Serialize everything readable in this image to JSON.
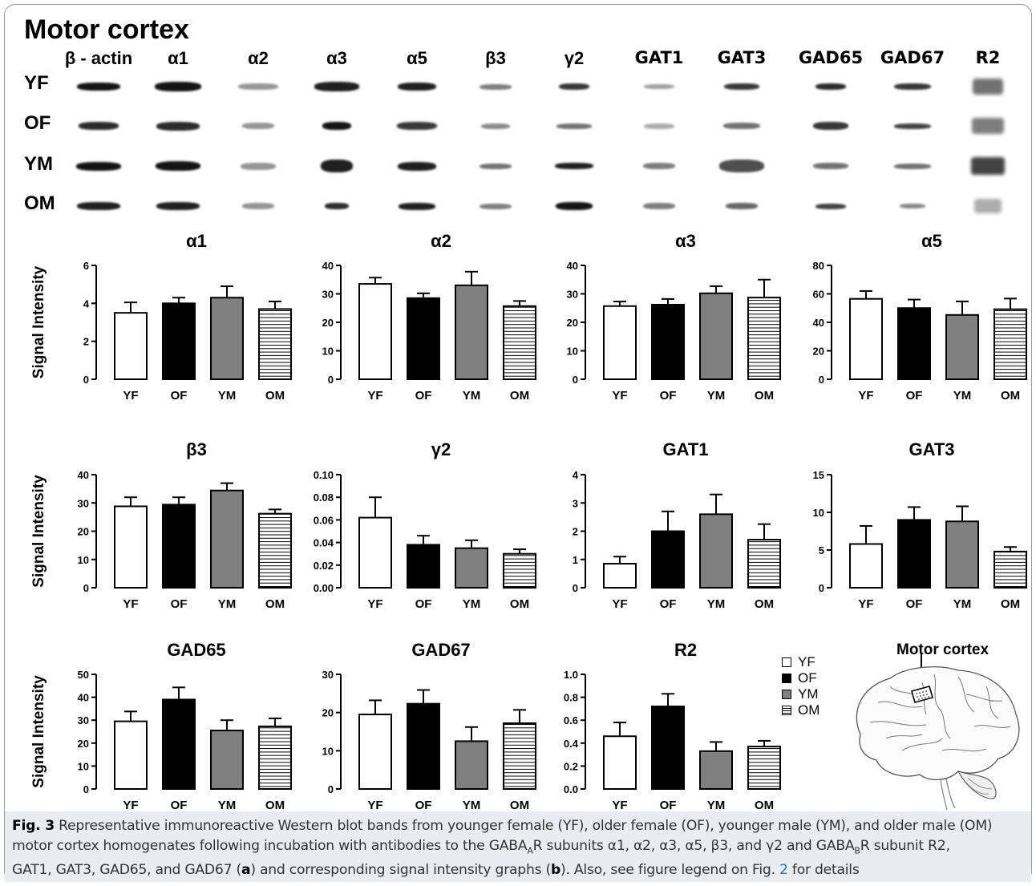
{
  "title": "Motor cortex",
  "blot": {
    "columns": [
      "β - actin",
      "α1",
      "α2",
      "α3",
      "α5",
      "β3",
      "γ2",
      "GAT1",
      "GAT3",
      "GAD65",
      "GAD67",
      "R2"
    ],
    "rows": [
      "YF",
      "OF",
      "YM",
      "OM"
    ]
  },
  "colors": {
    "YF": "#ffffff",
    "OF": "#000000",
    "YM": "#808080",
    "OM": "hatch"
  },
  "chart_data": [
    {
      "type": "bar",
      "title": "α1",
      "ylabel": "Signal Intensity",
      "categories": [
        "YF",
        "OF",
        "YM",
        "OM"
      ],
      "values": [
        3.5,
        4.0,
        4.3,
        3.7
      ],
      "errors": [
        0.55,
        0.3,
        0.6,
        0.4
      ],
      "ylim": [
        0,
        6
      ],
      "yticks": [
        "0",
        "2",
        "4",
        "6"
      ]
    },
    {
      "type": "bar",
      "title": "α2",
      "ylabel": "",
      "categories": [
        "YF",
        "OF",
        "YM",
        "OM"
      ],
      "values": [
        33.5,
        28.5,
        33,
        25.7
      ],
      "errors": [
        2.2,
        1.7,
        4.8,
        1.8
      ],
      "ylim": [
        0,
        40
      ],
      "yticks": [
        "0",
        "10",
        "20",
        "30",
        "40"
      ]
    },
    {
      "type": "bar",
      "title": "α3",
      "ylabel": "",
      "categories": [
        "YF",
        "OF",
        "YM",
        "OM"
      ],
      "values": [
        25.7,
        26.2,
        30.2,
        28.7
      ],
      "errors": [
        1.6,
        2.0,
        2.5,
        6.3
      ],
      "ylim": [
        0,
        40
      ],
      "yticks": [
        "0",
        "10",
        "20",
        "30",
        "40"
      ]
    },
    {
      "type": "bar",
      "title": "α5",
      "ylabel": "",
      "categories": [
        "YF",
        "OF",
        "YM",
        "OM"
      ],
      "values": [
        56.5,
        50,
        45.2,
        49.2
      ],
      "errors": [
        5.5,
        6,
        9.5,
        7.5
      ],
      "ylim": [
        0,
        80
      ],
      "yticks": [
        "0",
        "20",
        "40",
        "60",
        "80"
      ]
    },
    {
      "type": "bar",
      "title": "β3",
      "ylabel": "Signal Intensity",
      "categories": [
        "YF",
        "OF",
        "YM",
        "OM"
      ],
      "values": [
        28.8,
        29.4,
        34.4,
        26.2
      ],
      "errors": [
        3.2,
        2.6,
        2.6,
        1.5
      ],
      "ylim": [
        0,
        40
      ],
      "yticks": [
        "0",
        "10",
        "20",
        "30",
        "40"
      ]
    },
    {
      "type": "bar",
      "title": "γ2",
      "ylabel": "",
      "categories": [
        "YF",
        "OF",
        "YM",
        "OM"
      ],
      "values": [
        0.062,
        0.038,
        0.035,
        0.03
      ],
      "errors": [
        0.018,
        0.008,
        0.007,
        0.004
      ],
      "ylim": [
        0,
        0.1
      ],
      "yticks": [
        "0.00",
        "0.02",
        "0.04",
        "0.06",
        "0.08",
        "0.10"
      ]
    },
    {
      "type": "bar",
      "title": "GAT1",
      "ylabel": "",
      "categories": [
        "YF",
        "OF",
        "YM",
        "OM"
      ],
      "values": [
        0.85,
        2.0,
        2.6,
        1.7
      ],
      "errors": [
        0.25,
        0.7,
        0.7,
        0.55
      ],
      "ylim": [
        0,
        4
      ],
      "yticks": [
        "0",
        "1",
        "2",
        "3",
        "4"
      ]
    },
    {
      "type": "bar",
      "title": "GAT3",
      "ylabel": "",
      "categories": [
        "YF",
        "OF",
        "YM",
        "OM"
      ],
      "values": [
        5.8,
        9.0,
        8.8,
        4.8
      ],
      "errors": [
        2.4,
        1.7,
        2.0,
        0.6
      ],
      "ylim": [
        0,
        15
      ],
      "yticks": [
        "0",
        "5",
        "10",
        "15"
      ]
    },
    {
      "type": "bar",
      "title": "GAD65",
      "ylabel": "Signal Intensity",
      "categories": [
        "YF",
        "OF",
        "YM",
        "OM"
      ],
      "values": [
        29.5,
        39,
        25.5,
        27.3
      ],
      "errors": [
        4.3,
        5.3,
        4.5,
        3.5
      ],
      "ylim": [
        0,
        50
      ],
      "yticks": [
        "0",
        "10",
        "20",
        "30",
        "40",
        "50"
      ]
    },
    {
      "type": "bar",
      "title": "GAD67",
      "ylabel": "",
      "categories": [
        "YF",
        "OF",
        "YM",
        "OM"
      ],
      "values": [
        19.5,
        22.3,
        12.5,
        17.2
      ],
      "errors": [
        3.7,
        3.6,
        3.7,
        3.5
      ],
      "ylim": [
        0,
        30
      ],
      "yticks": [
        "0",
        "10",
        "20",
        "30"
      ]
    },
    {
      "type": "bar",
      "title": "R2",
      "ylabel": "",
      "categories": [
        "YF",
        "OF",
        "YM",
        "OM"
      ],
      "values": [
        0.46,
        0.72,
        0.33,
        0.37
      ],
      "errors": [
        0.12,
        0.11,
        0.08,
        0.05
      ],
      "ylim": [
        0,
        1.0
      ],
      "yticks": [
        "0.0",
        "0.2",
        "0.4",
        "0.6",
        "0.8",
        "1.0"
      ]
    }
  ],
  "legend": [
    "YF",
    "OF",
    "YM",
    "OM"
  ],
  "brain_label": "Motor cortex",
  "caption": {
    "fig_label": "Fig. 3",
    "line1": " Representative immunoreactive Western blot bands from younger female (YF), older female (OF), younger male (YM), and older male (OM)",
    "line2a": "motor cortex homogenates following incubation with antibodies to the GABA",
    "sub_a": "A",
    "line2b": "R subunits α1, α2, α3, α5, β3, and γ2 and GABA",
    "sub_b": "B",
    "line2c": "R subunit R2,",
    "line3a": "GAT1, GAT3, GAD65, and GAD67 (",
    "a": "a",
    "line3b": ") and corresponding signal intensity graphs (",
    "b": "b",
    "line3c": "). Also, see figure legend on Fig. ",
    "fig_ref": "2",
    "line3d": " for details"
  }
}
